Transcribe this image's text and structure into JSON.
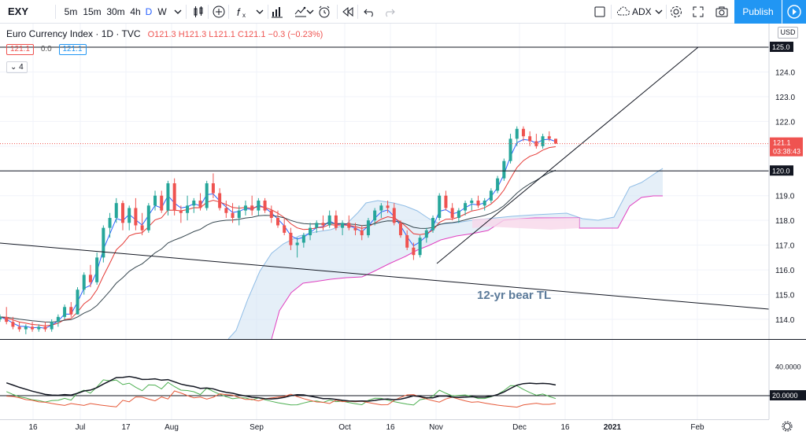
{
  "toolbar": {
    "symbol": "EXY",
    "intervals": [
      "5m",
      "15m",
      "30m",
      "4h",
      "D",
      "W"
    ],
    "active_interval": "D",
    "indicator_label": "ADX",
    "publish_label": "Publish"
  },
  "legend": {
    "title": "Euro Currency Index · 1D · TVC",
    "o": "O121.3",
    "h": "H121.3",
    "l": "L121.1",
    "c": "C121.1",
    "change": "−0.3 (−0.23%)",
    "ind_values": [
      "121.1",
      "0.0",
      "121.1"
    ],
    "collapse_count": "4"
  },
  "currency": "USD",
  "price_axis": {
    "ticks": [
      "125.0",
      "124.0",
      "123.0",
      "122.0",
      "121.0",
      "120.0",
      "119.0",
      "118.0",
      "117.0",
      "116.0",
      "115.0",
      "114.0"
    ],
    "last_price": "121.1",
    "countdown": "03:38:43",
    "level_125": "125.0",
    "level_120": "120.0"
  },
  "adx_axis": {
    "tick_40": "40.0000",
    "level_20": "20.0000"
  },
  "time_axis": [
    "16",
    "Jul",
    "17",
    "Aug",
    "Sep",
    "Oct",
    "16",
    "Nov",
    "Dec",
    "16",
    "2021",
    "Feb"
  ],
  "annotation": "12-yr bear TL",
  "colors": {
    "up": "#26a69a",
    "down": "#ef5350",
    "accent": "#2196f3",
    "cloud": "#cfe2f3",
    "cloud_pink": "#f8d7ea"
  },
  "chart_data": {
    "type": "candlestick",
    "ylim": [
      113.5,
      125.5
    ],
    "candles": [
      [
        114.0,
        114.2,
        113.9,
        114.1
      ],
      [
        114.1,
        114.5,
        113.8,
        113.9
      ],
      [
        113.9,
        114.1,
        113.6,
        113.7
      ],
      [
        113.7,
        113.9,
        113.5,
        113.6
      ],
      [
        113.6,
        113.8,
        113.4,
        113.7
      ],
      [
        113.7,
        113.9,
        113.5,
        113.6
      ],
      [
        113.6,
        113.8,
        113.5,
        113.7
      ],
      [
        113.7,
        113.9,
        113.5,
        113.6
      ],
      [
        113.6,
        114.0,
        113.5,
        113.9
      ],
      [
        113.9,
        114.2,
        113.7,
        114.1
      ],
      [
        114.1,
        114.6,
        114.0,
        114.5
      ],
      [
        114.5,
        114.7,
        114.1,
        114.2
      ],
      [
        114.2,
        115.3,
        114.2,
        115.2
      ],
      [
        115.2,
        115.9,
        115.0,
        115.8
      ],
      [
        115.8,
        116.2,
        115.3,
        115.5
      ],
      [
        115.5,
        116.7,
        115.4,
        116.5
      ],
      [
        116.5,
        117.8,
        116.3,
        117.7
      ],
      [
        117.7,
        118.3,
        117.3,
        118.1
      ],
      [
        118.1,
        118.9,
        117.9,
        118.7
      ],
      [
        118.7,
        118.8,
        117.6,
        117.9
      ],
      [
        117.9,
        118.6,
        117.6,
        118.5
      ],
      [
        118.5,
        118.9,
        117.6,
        117.8
      ],
      [
        117.8,
        118.3,
        117.4,
        117.6
      ],
      [
        117.6,
        118.7,
        117.5,
        118.6
      ],
      [
        118.6,
        119.2,
        118.4,
        119.0
      ],
      [
        119.0,
        119.2,
        118.3,
        118.4
      ],
      [
        118.4,
        119.6,
        118.2,
        119.5
      ],
      [
        119.5,
        119.7,
        118.2,
        118.4
      ],
      [
        118.4,
        118.6,
        117.9,
        118.3
      ],
      [
        118.3,
        119.0,
        118.0,
        118.6
      ],
      [
        118.6,
        118.9,
        118.3,
        118.8
      ],
      [
        118.8,
        119.1,
        118.4,
        118.5
      ],
      [
        118.5,
        119.6,
        118.4,
        119.5
      ],
      [
        119.5,
        119.9,
        118.9,
        119.1
      ],
      [
        119.1,
        119.3,
        118.4,
        118.5
      ],
      [
        118.5,
        118.8,
        118.1,
        118.3
      ],
      [
        118.3,
        118.7,
        117.9,
        118.1
      ],
      [
        118.1,
        118.6,
        117.8,
        118.4
      ],
      [
        118.4,
        118.8,
        118.2,
        118.6
      ],
      [
        118.6,
        119.0,
        118.2,
        118.4
      ],
      [
        118.4,
        118.9,
        118.2,
        118.8
      ],
      [
        118.8,
        118.9,
        118.3,
        118.4
      ],
      [
        118.4,
        118.6,
        117.9,
        118.1
      ],
      [
        118.1,
        118.4,
        117.7,
        117.8
      ],
      [
        117.8,
        118.1,
        117.4,
        117.5
      ],
      [
        117.5,
        117.7,
        116.8,
        117.0
      ],
      [
        117.0,
        117.3,
        116.5,
        117.1
      ],
      [
        117.1,
        117.5,
        116.9,
        117.4
      ],
      [
        117.4,
        117.9,
        117.2,
        117.7
      ],
      [
        117.7,
        118.0,
        117.5,
        117.9
      ],
      [
        117.9,
        118.2,
        117.6,
        117.8
      ],
      [
        117.8,
        118.4,
        117.7,
        118.2
      ],
      [
        118.2,
        118.4,
        117.6,
        117.7
      ],
      [
        117.7,
        118.0,
        117.4,
        117.9
      ],
      [
        117.9,
        118.2,
        117.6,
        117.7
      ],
      [
        117.7,
        117.9,
        117.4,
        117.6
      ],
      [
        117.6,
        117.8,
        117.2,
        117.4
      ],
      [
        117.4,
        118.1,
        117.3,
        118.0
      ],
      [
        118.0,
        118.5,
        117.8,
        118.4
      ],
      [
        118.4,
        118.7,
        118.1,
        118.6
      ],
      [
        118.6,
        118.8,
        118.3,
        118.5
      ],
      [
        118.5,
        118.7,
        117.8,
        117.9
      ],
      [
        117.9,
        118.0,
        117.3,
        117.4
      ],
      [
        117.4,
        117.6,
        116.8,
        116.9
      ],
      [
        116.9,
        117.1,
        116.4,
        116.6
      ],
      [
        116.6,
        117.4,
        116.5,
        117.3
      ],
      [
        117.3,
        117.7,
        117.1,
        117.6
      ],
      [
        117.6,
        118.2,
        117.5,
        118.1
      ],
      [
        118.1,
        119.1,
        118.0,
        119.0
      ],
      [
        119.0,
        119.2,
        118.4,
        118.5
      ],
      [
        118.5,
        118.7,
        118.0,
        118.1
      ],
      [
        118.1,
        118.5,
        117.9,
        118.4
      ],
      [
        118.4,
        118.8,
        118.2,
        118.7
      ],
      [
        118.7,
        118.9,
        118.4,
        118.8
      ],
      [
        118.8,
        119.0,
        118.5,
        118.6
      ],
      [
        118.6,
        118.9,
        118.4,
        118.8
      ],
      [
        118.8,
        119.3,
        118.7,
        119.2
      ],
      [
        119.2,
        119.8,
        119.1,
        119.7
      ],
      [
        119.7,
        120.5,
        119.6,
        120.4
      ],
      [
        120.4,
        121.5,
        120.3,
        121.3
      ],
      [
        121.3,
        121.8,
        121.0,
        121.7
      ],
      [
        121.7,
        121.8,
        121.2,
        121.4
      ],
      [
        121.4,
        121.6,
        121.0,
        121.2
      ],
      [
        121.2,
        121.5,
        120.9,
        121.0
      ],
      [
        121.0,
        121.5,
        120.9,
        121.4
      ],
      [
        121.4,
        121.6,
        121.2,
        121.3
      ],
      [
        121.3,
        121.3,
        121.1,
        121.1
      ]
    ]
  }
}
